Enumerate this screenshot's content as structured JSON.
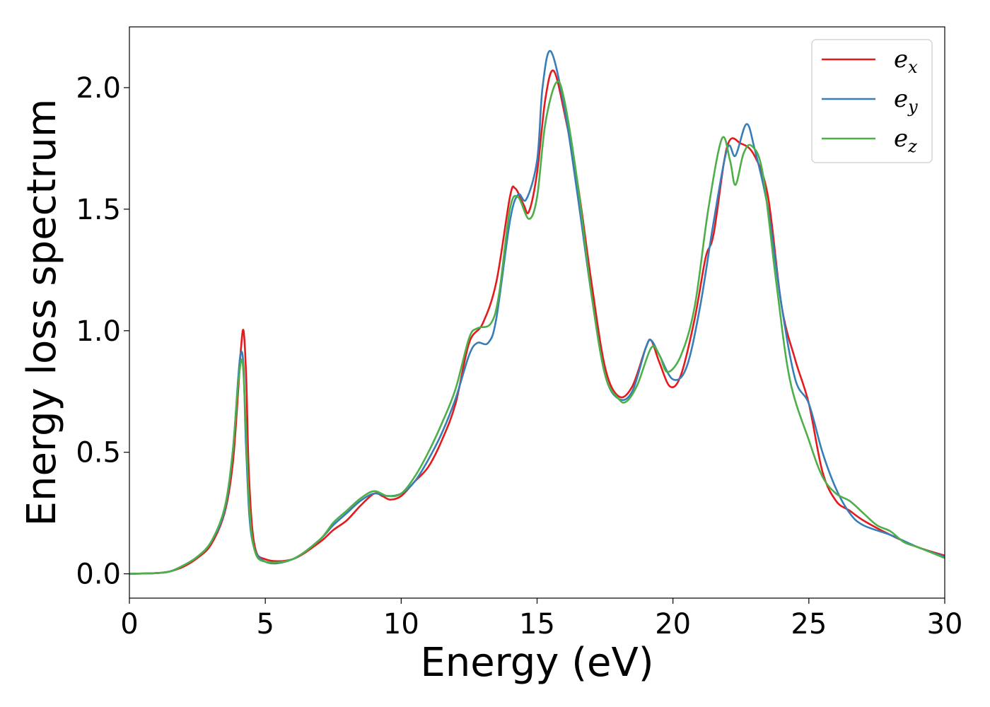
{
  "chart_data": {
    "type": "line",
    "title": "",
    "xlabel": "Energy (eV)",
    "ylabel": "Energy loss spectrum",
    "xlim": [
      0,
      30
    ],
    "ylim": [
      -0.1,
      2.25
    ],
    "xticks": [
      0,
      5,
      10,
      15,
      20,
      25,
      30
    ],
    "yticks": [
      0.0,
      0.5,
      1.0,
      1.5,
      2.0
    ],
    "xtick_labels": [
      "0",
      "5",
      "10",
      "15",
      "20",
      "25",
      "30"
    ],
    "ytick_labels": [
      "0.0",
      "0.5",
      "1.0",
      "1.5",
      "2.0"
    ],
    "grid": false,
    "legend_position": "top-right",
    "series": [
      {
        "name": "e_x",
        "legend_base": "e",
        "legend_sub": "x",
        "color": "#e41a1c",
        "points": [
          [
            0,
            0
          ],
          [
            1,
            0.003
          ],
          [
            1.5,
            0.01
          ],
          [
            2,
            0.03
          ],
          [
            2.5,
            0.065
          ],
          [
            3,
            0.12
          ],
          [
            3.5,
            0.25
          ],
          [
            3.8,
            0.45
          ],
          [
            4.0,
            0.75
          ],
          [
            4.1,
            0.92
          ],
          [
            4.2,
            1.0
          ],
          [
            4.3,
            0.8
          ],
          [
            4.4,
            0.4
          ],
          [
            4.6,
            0.12
          ],
          [
            5,
            0.06
          ],
          [
            6,
            0.06
          ],
          [
            7,
            0.13
          ],
          [
            7.5,
            0.18
          ],
          [
            8,
            0.22
          ],
          [
            8.5,
            0.28
          ],
          [
            9,
            0.33
          ],
          [
            9.3,
            0.32
          ],
          [
            9.6,
            0.305
          ],
          [
            10,
            0.32
          ],
          [
            10.5,
            0.38
          ],
          [
            11,
            0.44
          ],
          [
            11.5,
            0.55
          ],
          [
            12,
            0.7
          ],
          [
            12.5,
            0.95
          ],
          [
            13,
            1.03
          ],
          [
            13.5,
            1.2
          ],
          [
            14,
            1.55
          ],
          [
            14.2,
            1.585
          ],
          [
            14.5,
            1.52
          ],
          [
            14.7,
            1.49
          ],
          [
            15,
            1.65
          ],
          [
            15.3,
            1.95
          ],
          [
            15.6,
            2.07
          ],
          [
            16,
            1.9
          ],
          [
            16.5,
            1.6
          ],
          [
            17,
            1.2
          ],
          [
            17.5,
            0.85
          ],
          [
            18,
            0.73
          ],
          [
            18.5,
            0.77
          ],
          [
            19,
            0.93
          ],
          [
            19.2,
            0.96
          ],
          [
            19.5,
            0.87
          ],
          [
            19.9,
            0.77
          ],
          [
            20.3,
            0.82
          ],
          [
            20.8,
            1.05
          ],
          [
            21.2,
            1.3
          ],
          [
            21.5,
            1.4
          ],
          [
            22,
            1.76
          ],
          [
            22.5,
            1.77
          ],
          [
            23,
            1.72
          ],
          [
            23.5,
            1.55
          ],
          [
            24,
            1.1
          ],
          [
            24.5,
            0.88
          ],
          [
            25,
            0.7
          ],
          [
            25.5,
            0.42
          ],
          [
            26,
            0.3
          ],
          [
            26.5,
            0.26
          ],
          [
            27,
            0.22
          ],
          [
            28,
            0.16
          ],
          [
            29,
            0.11
          ],
          [
            30,
            0.075
          ]
        ]
      },
      {
        "name": "e_y",
        "legend_base": "e",
        "legend_sub": "y",
        "color": "#377eb8",
        "points": [
          [
            0,
            0
          ],
          [
            1,
            0.003
          ],
          [
            1.5,
            0.01
          ],
          [
            2,
            0.035
          ],
          [
            2.5,
            0.07
          ],
          [
            3,
            0.13
          ],
          [
            3.5,
            0.26
          ],
          [
            3.8,
            0.5
          ],
          [
            4.0,
            0.8
          ],
          [
            4.1,
            0.91
          ],
          [
            4.2,
            0.85
          ],
          [
            4.3,
            0.5
          ],
          [
            4.5,
            0.15
          ],
          [
            5,
            0.05
          ],
          [
            6,
            0.06
          ],
          [
            7,
            0.14
          ],
          [
            7.5,
            0.2
          ],
          [
            8,
            0.25
          ],
          [
            8.5,
            0.3
          ],
          [
            9,
            0.33
          ],
          [
            9.5,
            0.32
          ],
          [
            10,
            0.33
          ],
          [
            10.5,
            0.38
          ],
          [
            11,
            0.47
          ],
          [
            11.5,
            0.58
          ],
          [
            12,
            0.72
          ],
          [
            12.5,
            0.9
          ],
          [
            12.8,
            0.95
          ],
          [
            13.2,
            0.95
          ],
          [
            13.5,
            1.05
          ],
          [
            14,
            1.45
          ],
          [
            14.3,
            1.56
          ],
          [
            14.6,
            1.54
          ],
          [
            15,
            1.7
          ],
          [
            15.2,
            2.0
          ],
          [
            15.5,
            2.15
          ],
          [
            16,
            1.92
          ],
          [
            16.5,
            1.55
          ],
          [
            17,
            1.15
          ],
          [
            17.5,
            0.82
          ],
          [
            18,
            0.72
          ],
          [
            18.5,
            0.75
          ],
          [
            19,
            0.93
          ],
          [
            19.2,
            0.96
          ],
          [
            19.5,
            0.9
          ],
          [
            20,
            0.8
          ],
          [
            20.5,
            0.85
          ],
          [
            21,
            1.1
          ],
          [
            21.5,
            1.45
          ],
          [
            22,
            1.75
          ],
          [
            22.3,
            1.72
          ],
          [
            22.7,
            1.85
          ],
          [
            23,
            1.75
          ],
          [
            23.5,
            1.5
          ],
          [
            24,
            1.1
          ],
          [
            24.5,
            0.8
          ],
          [
            25,
            0.7
          ],
          [
            25.5,
            0.5
          ],
          [
            26,
            0.35
          ],
          [
            26.5,
            0.25
          ],
          [
            27,
            0.2
          ],
          [
            28,
            0.16
          ],
          [
            29,
            0.11
          ],
          [
            30,
            0.07
          ]
        ]
      },
      {
        "name": "e_z",
        "legend_base": "e",
        "legend_sub": "z",
        "color": "#4daf4a",
        "points": [
          [
            0,
            0
          ],
          [
            1,
            0.003
          ],
          [
            1.5,
            0.01
          ],
          [
            2,
            0.035
          ],
          [
            2.5,
            0.07
          ],
          [
            3,
            0.13
          ],
          [
            3.5,
            0.27
          ],
          [
            3.8,
            0.5
          ],
          [
            4.0,
            0.78
          ],
          [
            4.15,
            0.88
          ],
          [
            4.25,
            0.7
          ],
          [
            4.4,
            0.3
          ],
          [
            4.6,
            0.1
          ],
          [
            5,
            0.05
          ],
          [
            6,
            0.06
          ],
          [
            7,
            0.14
          ],
          [
            7.5,
            0.21
          ],
          [
            8,
            0.26
          ],
          [
            8.5,
            0.31
          ],
          [
            9,
            0.34
          ],
          [
            9.5,
            0.32
          ],
          [
            10,
            0.33
          ],
          [
            10.5,
            0.4
          ],
          [
            11,
            0.5
          ],
          [
            11.5,
            0.62
          ],
          [
            12,
            0.76
          ],
          [
            12.5,
            0.97
          ],
          [
            12.8,
            1.01
          ],
          [
            13.3,
            1.03
          ],
          [
            13.6,
            1.15
          ],
          [
            14,
            1.5
          ],
          [
            14.3,
            1.55
          ],
          [
            14.7,
            1.46
          ],
          [
            15,
            1.55
          ],
          [
            15.3,
            1.85
          ],
          [
            15.7,
            2.02
          ],
          [
            16,
            1.95
          ],
          [
            16.5,
            1.6
          ],
          [
            17,
            1.15
          ],
          [
            17.5,
            0.82
          ],
          [
            18,
            0.72
          ],
          [
            18.3,
            0.71
          ],
          [
            18.7,
            0.78
          ],
          [
            19.2,
            0.93
          ],
          [
            19.5,
            0.9
          ],
          [
            19.8,
            0.83
          ],
          [
            20.3,
            0.9
          ],
          [
            20.8,
            1.1
          ],
          [
            21.3,
            1.5
          ],
          [
            21.8,
            1.79
          ],
          [
            22.1,
            1.7
          ],
          [
            22.3,
            1.6
          ],
          [
            22.6,
            1.73
          ],
          [
            22.9,
            1.76
          ],
          [
            23.3,
            1.65
          ],
          [
            23.8,
            1.2
          ],
          [
            24.3,
            0.8
          ],
          [
            25,
            0.55
          ],
          [
            25.5,
            0.4
          ],
          [
            26,
            0.33
          ],
          [
            26.5,
            0.3
          ],
          [
            27,
            0.25
          ],
          [
            27.5,
            0.2
          ],
          [
            28,
            0.175
          ],
          [
            28.5,
            0.13
          ],
          [
            29,
            0.11
          ],
          [
            30,
            0.065
          ]
        ]
      }
    ]
  }
}
